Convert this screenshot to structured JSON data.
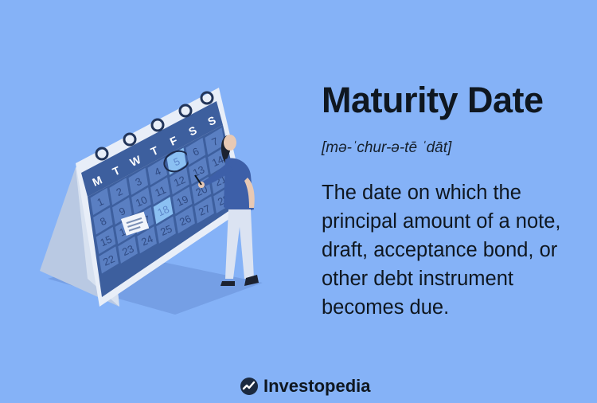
{
  "header": {
    "title": "Maturity Date",
    "pronunciation": "[mə-ˈchur-ə-tē ˈdāt]"
  },
  "definition": "The date on which the principal amount of a note, draft, acceptance bond, or other debt instrument becomes due.",
  "calendar": {
    "weekdays": [
      "M",
      "T",
      "W",
      "T",
      "F",
      "S",
      "S"
    ],
    "days": [
      "1",
      "2",
      "3",
      "4",
      "5",
      "6",
      "7",
      "8",
      "9",
      "10",
      "11",
      "12",
      "13",
      "14",
      "15",
      "16",
      "17",
      "18",
      "19",
      "20",
      "21",
      "22",
      "23",
      "24",
      "25",
      "26",
      "27",
      "28"
    ],
    "circled_day": "5",
    "highlighted_day": "18"
  },
  "brand": {
    "name": "Investopedia",
    "logo_icon": "investopedia-logo-icon"
  },
  "colors": {
    "background": "#85b2f7",
    "calendar_header": "#3d5f9e",
    "calendar_cell": "#5a7fc2",
    "highlight_cell": "#8bc0f2",
    "text": "#0f1720"
  }
}
